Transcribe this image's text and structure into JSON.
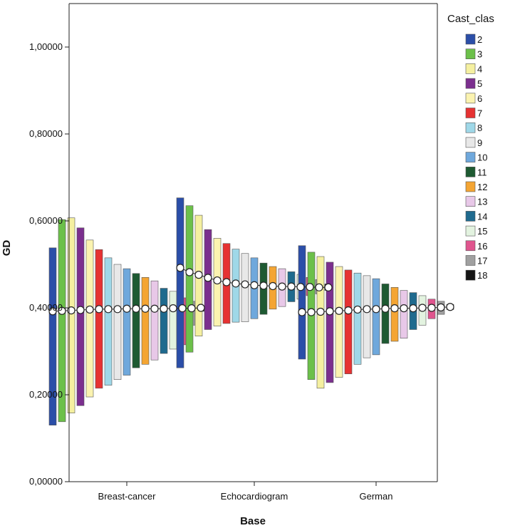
{
  "chart_data": {
    "type": "bar",
    "xlabel": "Base",
    "ylabel": "GD",
    "ylim": [
      0,
      1.1
    ],
    "yticks": [
      {
        "value": 0.0,
        "label": "0,00000"
      },
      {
        "value": 0.2,
        "label": "0,20000"
      },
      {
        "value": 0.4,
        "label": "0,40000"
      },
      {
        "value": 0.6,
        "label": "0,60000"
      },
      {
        "value": 0.8,
        "label": "0,80000"
      },
      {
        "value": 1.0,
        "label": "1,00000"
      }
    ],
    "categories": [
      "Breast-cancer",
      "Echocardiogram",
      "German"
    ],
    "grid": false,
    "legend": {
      "title": "Cast_clas",
      "position": "right"
    },
    "series": [
      {
        "name": "2",
        "color": "#2b4ea8",
        "low": [
          0.13,
          0.262,
          0.282
        ],
        "high": [
          0.538,
          0.653,
          0.543
        ],
        "mean": [
          0.392,
          0.492,
          0.39
        ]
      },
      {
        "name": "3",
        "color": "#6cc04a",
        "low": [
          0.138,
          0.298,
          0.235
        ],
        "high": [
          0.603,
          0.635,
          0.528
        ],
        "mean": [
          0.393,
          0.482,
          0.39
        ]
      },
      {
        "name": "4",
        "color": "#f5f0a0",
        "low": [
          0.158,
          0.335,
          0.215
        ],
        "high": [
          0.607,
          0.613,
          0.518
        ],
        "mean": [
          0.394,
          0.476,
          0.391
        ]
      },
      {
        "name": "5",
        "color": "#7b2f8e",
        "low": [
          0.175,
          0.35,
          0.228
        ],
        "high": [
          0.584,
          0.58,
          0.505
        ],
        "mean": [
          0.395,
          0.469,
          0.392
        ]
      },
      {
        "name": "6",
        "color": "#fbf3b0",
        "low": [
          0.195,
          0.358,
          0.24
        ],
        "high": [
          0.556,
          0.56,
          0.495
        ],
        "mean": [
          0.396,
          0.463,
          0.393
        ]
      },
      {
        "name": "7",
        "color": "#e63232",
        "low": [
          0.215,
          0.364,
          0.248
        ],
        "high": [
          0.534,
          0.548,
          0.487
        ],
        "mean": [
          0.397,
          0.459,
          0.394
        ]
      },
      {
        "name": "8",
        "color": "#9fd8e8",
        "low": [
          0.222,
          0.367,
          0.27
        ],
        "high": [
          0.515,
          0.535,
          0.48
        ],
        "mean": [
          0.397,
          0.456,
          0.396
        ]
      },
      {
        "name": "9",
        "color": "#e8e8e8",
        "low": [
          0.235,
          0.368,
          0.285
        ],
        "high": [
          0.5,
          0.525,
          0.474
        ],
        "mean": [
          0.397,
          0.454,
          0.397
        ]
      },
      {
        "name": "10",
        "color": "#6fa8dc",
        "low": [
          0.245,
          0.375,
          0.292
        ],
        "high": [
          0.49,
          0.515,
          0.467
        ],
        "mean": [
          0.398,
          0.452,
          0.397
        ]
      },
      {
        "name": "11",
        "color": "#1e5a32",
        "low": [
          0.262,
          0.385,
          0.318
        ],
        "high": [
          0.479,
          0.503,
          0.455
        ],
        "mean": [
          0.398,
          0.451,
          0.398
        ]
      },
      {
        "name": "12",
        "color": "#f4a533",
        "low": [
          0.27,
          0.397,
          0.323
        ],
        "high": [
          0.47,
          0.495,
          0.447
        ],
        "mean": [
          0.398,
          0.45,
          0.399
        ]
      },
      {
        "name": "13",
        "color": "#e8c8e8",
        "low": [
          0.28,
          0.403,
          0.33
        ],
        "high": [
          0.462,
          0.49,
          0.44
        ],
        "mean": [
          0.398,
          0.449,
          0.399
        ]
      },
      {
        "name": "14",
        "color": "#1f6a8e",
        "low": [
          0.295,
          0.414,
          0.35
        ],
        "high": [
          0.445,
          0.483,
          0.435
        ],
        "mean": [
          0.398,
          0.449,
          0.399
        ]
      },
      {
        "name": "15",
        "color": "#e3f3e0",
        "low": [
          0.305,
          0.42,
          0.36
        ],
        "high": [
          0.438,
          0.477,
          0.428
        ],
        "mean": [
          0.399,
          0.448,
          0.4
        ]
      },
      {
        "name": "16",
        "color": "#e0558e",
        "low": [
          0.315,
          0.428,
          0.375
        ],
        "high": [
          0.423,
          0.47,
          0.42
        ],
        "mean": [
          0.399,
          0.448,
          0.4
        ]
      },
      {
        "name": "17",
        "color": "#a0a0a0",
        "low": [
          0.36,
          0.432,
          0.385
        ],
        "high": [
          0.415,
          0.465,
          0.415
        ],
        "mean": [
          0.399,
          0.447,
          0.401
        ]
      },
      {
        "name": "18",
        "color": "#151515",
        "low": [
          0.392,
          0.44,
          0.396
        ],
        "high": [
          0.405,
          0.455,
          0.408
        ],
        "mean": [
          0.4,
          0.447,
          0.402
        ]
      }
    ]
  }
}
